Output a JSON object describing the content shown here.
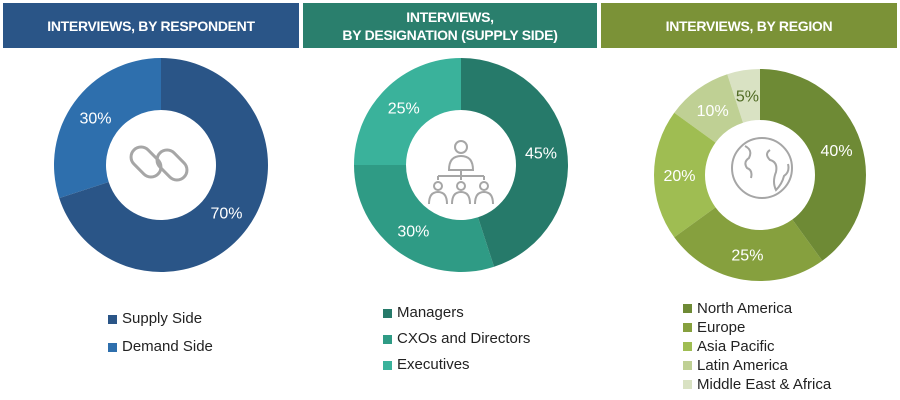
{
  "chart_data": [
    {
      "type": "pie",
      "title": "INTERVIEWS, BY RESPONDENT",
      "center_icon": "chain-link-icon",
      "categories": [
        "Supply Side",
        "Demand Side"
      ],
      "values": [
        70,
        30
      ],
      "labels": [
        "70%",
        "30%"
      ],
      "colors": [
        "#2a5587",
        "#2e6fad"
      ],
      "legend": "bottom"
    },
    {
      "type": "pie",
      "title_line1": "INTERVIEWS,",
      "title_line2": "BY DESIGNATION (SUPPLY SIDE)",
      "center_icon": "org-hierarchy-icon",
      "categories": [
        "Managers",
        "CXOs and Directors",
        "Executives"
      ],
      "values": [
        45,
        30,
        25
      ],
      "labels": [
        "45%",
        "30%",
        "25%"
      ],
      "colors": [
        "#267a6a",
        "#2f9b85",
        "#3ab29b"
      ],
      "legend": "bottom"
    },
    {
      "type": "pie",
      "title": "INTERVIEWS, BY REGION",
      "center_icon": "globe-icon",
      "categories": [
        "North America",
        "Europe",
        "Asia Pacific",
        "Latin America",
        "Middle East & Africa"
      ],
      "values": [
        40,
        25,
        20,
        10,
        5
      ],
      "labels": [
        "40%",
        "25%",
        "20%",
        "10%",
        "5%"
      ],
      "colors": [
        "#6e8a35",
        "#86a03e",
        "#9fbd52",
        "#bfd094",
        "#d9e2c3"
      ],
      "legend": "bottom"
    }
  ],
  "header_colors": [
    "#2a5587",
    "#2a7f6d",
    "#7b9237"
  ]
}
